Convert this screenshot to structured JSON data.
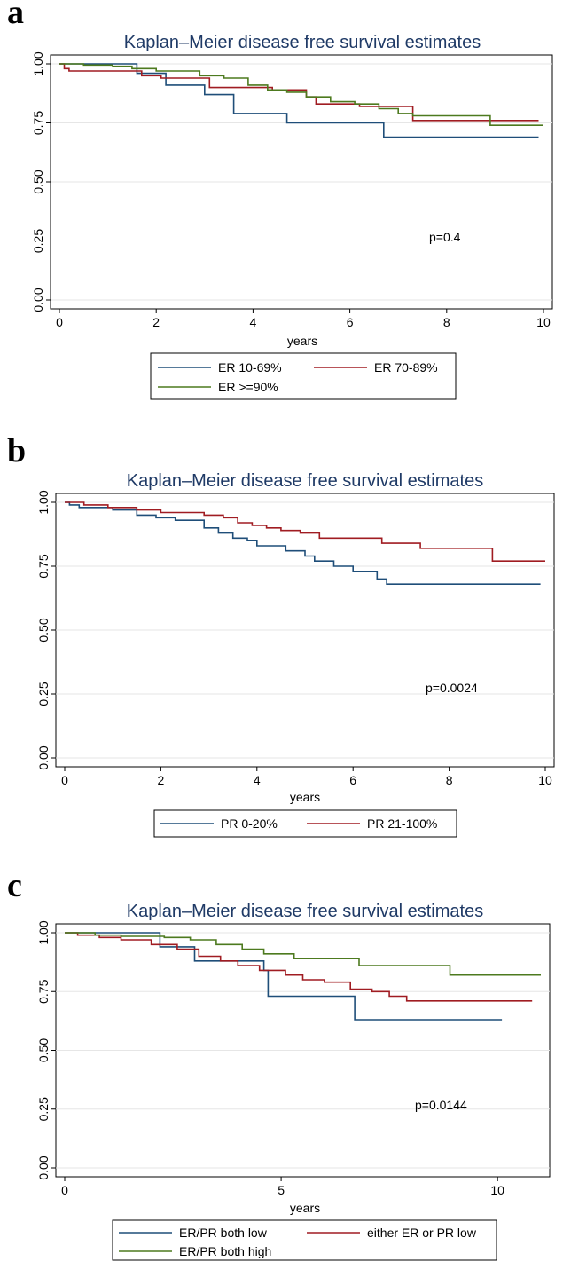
{
  "chart_data": [
    {
      "panel": "a",
      "type": "line",
      "title": "Kaplan–Meier disease free survival estimates",
      "xlabel": "years",
      "ylabel": "",
      "xlim": [
        0,
        10
      ],
      "ylim": [
        0,
        1
      ],
      "xticks": [
        0,
        2,
        4,
        6,
        8,
        10
      ],
      "yticks": [
        0,
        0.25,
        0.5,
        0.75,
        1
      ],
      "ytick_labels": [
        "0.00",
        "0.25",
        "0.50",
        "0.75",
        "1.00"
      ],
      "grid": true,
      "annotation": {
        "text": "p=0.4",
        "x": 7.5,
        "y": 0.27
      },
      "legend": {
        "placement": "bottom",
        "columns": 2
      },
      "series": [
        {
          "name": "ER 10-69%",
          "color": "#1f4e79",
          "x": [
            0,
            1.6,
            1.6,
            2.2,
            2.2,
            3.0,
            3.0,
            3.6,
            3.6,
            4.7,
            4.7,
            6.7,
            6.7,
            9.9
          ],
          "y": [
            1.0,
            1.0,
            0.96,
            0.96,
            0.91,
            0.91,
            0.87,
            0.87,
            0.79,
            0.79,
            0.75,
            0.75,
            0.69,
            0.69
          ]
        },
        {
          "name": "ER 70-89%",
          "color": "#a01c22",
          "x": [
            0,
            0.1,
            0.1,
            0.2,
            0.2,
            1.7,
            1.7,
            2.1,
            2.1,
            3.1,
            3.1,
            4.4,
            4.4,
            5.1,
            5.1,
            5.3,
            5.3,
            6.2,
            6.2,
            7.3,
            7.3,
            9.9
          ],
          "y": [
            1.0,
            1.0,
            0.98,
            0.98,
            0.97,
            0.97,
            0.95,
            0.95,
            0.94,
            0.94,
            0.9,
            0.9,
            0.89,
            0.89,
            0.86,
            0.86,
            0.83,
            0.83,
            0.82,
            0.82,
            0.76,
            0.76
          ],
          "end_y": 0.76
        },
        {
          "name": "ER >=90%",
          "color": "#4d7a1f",
          "x": [
            0,
            0.5,
            0.5,
            1.1,
            1.1,
            1.5,
            1.5,
            2.0,
            2.0,
            2.9,
            2.9,
            3.4,
            3.4,
            3.9,
            3.9,
            4.3,
            4.3,
            4.7,
            4.7,
            5.1,
            5.1,
            5.6,
            5.6,
            6.1,
            6.1,
            6.6,
            6.6,
            7.0,
            7.0,
            7.3,
            7.3,
            8.9,
            8.9,
            10.0
          ],
          "y": [
            1.0,
            1.0,
            0.995,
            0.995,
            0.99,
            0.99,
            0.98,
            0.98,
            0.97,
            0.97,
            0.95,
            0.95,
            0.94,
            0.94,
            0.91,
            0.91,
            0.89,
            0.89,
            0.88,
            0.88,
            0.86,
            0.86,
            0.84,
            0.84,
            0.83,
            0.83,
            0.81,
            0.81,
            0.79,
            0.79,
            0.78,
            0.78,
            0.74,
            0.74
          ]
        }
      ]
    },
    {
      "panel": "b",
      "type": "line",
      "title": "Kaplan–Meier disease free survival estimates",
      "xlabel": "years",
      "ylabel": "",
      "xlim": [
        0,
        10
      ],
      "ylim": [
        0,
        1
      ],
      "xticks": [
        0,
        2,
        4,
        6,
        8,
        10
      ],
      "yticks": [
        0,
        0.25,
        0.5,
        0.75,
        1
      ],
      "ytick_labels": [
        "0.00",
        "0.25",
        "0.50",
        "0.75",
        "1.00"
      ],
      "grid": true,
      "annotation": {
        "text": "p=0.0024",
        "x": 7.5,
        "y": 0.27
      },
      "legend": {
        "placement": "bottom",
        "columns": 2
      },
      "series": [
        {
          "name": "PR 0-20%",
          "color": "#1f4e79",
          "x": [
            0,
            0.1,
            0.1,
            0.3,
            0.3,
            1.0,
            1.0,
            1.5,
            1.5,
            1.9,
            1.9,
            2.3,
            2.3,
            2.9,
            2.9,
            3.2,
            3.2,
            3.5,
            3.5,
            3.8,
            3.8,
            4.0,
            4.0,
            4.6,
            4.6,
            5.0,
            5.0,
            5.2,
            5.2,
            5.6,
            5.6,
            6.0,
            6.0,
            6.5,
            6.5,
            6.7,
            6.7,
            7.1,
            7.1,
            9.9
          ],
          "y": [
            1.0,
            1.0,
            0.99,
            0.99,
            0.98,
            0.98,
            0.97,
            0.97,
            0.95,
            0.95,
            0.94,
            0.94,
            0.93,
            0.93,
            0.9,
            0.9,
            0.88,
            0.88,
            0.86,
            0.86,
            0.85,
            0.85,
            0.83,
            0.83,
            0.81,
            0.81,
            0.79,
            0.79,
            0.77,
            0.77,
            0.75,
            0.75,
            0.73,
            0.73,
            0.7,
            0.7,
            0.68,
            0.68,
            0.68,
            0.68
          ]
        },
        {
          "name": "PR 21-100%",
          "color": "#a01c22",
          "x": [
            0,
            0.4,
            0.4,
            0.9,
            0.9,
            1.5,
            1.5,
            2.0,
            2.0,
            2.9,
            2.9,
            3.3,
            3.3,
            3.6,
            3.6,
            3.9,
            3.9,
            4.2,
            4.2,
            4.5,
            4.5,
            4.9,
            4.9,
            5.3,
            5.3,
            6.6,
            6.6,
            7.4,
            7.4,
            8.9,
            8.9,
            10.0
          ],
          "y": [
            1.0,
            1.0,
            0.99,
            0.99,
            0.98,
            0.98,
            0.97,
            0.97,
            0.96,
            0.96,
            0.95,
            0.95,
            0.94,
            0.94,
            0.92,
            0.92,
            0.91,
            0.91,
            0.9,
            0.9,
            0.89,
            0.89,
            0.88,
            0.88,
            0.86,
            0.86,
            0.84,
            0.84,
            0.82,
            0.82,
            0.77,
            0.77
          ]
        }
      ]
    },
    {
      "panel": "c",
      "type": "line",
      "title": "Kaplan–Meier disease free survival estimates",
      "xlabel": "years",
      "ylabel": "",
      "xlim": [
        0,
        11
      ],
      "ylim": [
        0,
        1
      ],
      "xticks": [
        0,
        5,
        10
      ],
      "yticks": [
        0,
        0.25,
        0.5,
        0.75,
        1
      ],
      "ytick_labels": [
        "0.00",
        "0.25",
        "0.50",
        "0.75",
        "1.00"
      ],
      "grid": true,
      "annotation": {
        "text": "p=0.0144",
        "x": 8.0,
        "y": 0.27
      },
      "legend": {
        "placement": "bottom",
        "columns": 2
      },
      "series": [
        {
          "name": "ER/PR both low",
          "color": "#1f4e79",
          "x": [
            0,
            2.2,
            2.2,
            3.0,
            3.0,
            4.6,
            4.6,
            4.7,
            4.7,
            6.7,
            6.7,
            10.1
          ],
          "y": [
            1.0,
            1.0,
            0.94,
            0.94,
            0.88,
            0.88,
            0.84,
            0.84,
            0.73,
            0.73,
            0.63,
            0.63
          ]
        },
        {
          "name": "either ER or PR low",
          "color": "#a01c22",
          "x": [
            0,
            0.3,
            0.3,
            0.8,
            0.8,
            1.3,
            1.3,
            2.0,
            2.0,
            2.6,
            2.6,
            3.1,
            3.1,
            3.6,
            3.6,
            4.0,
            4.0,
            4.5,
            4.5,
            5.1,
            5.1,
            5.5,
            5.5,
            6.0,
            6.0,
            6.6,
            6.6,
            7.1,
            7.1,
            7.5,
            7.5,
            7.9,
            7.9,
            10.8
          ],
          "y": [
            1.0,
            1.0,
            0.99,
            0.99,
            0.98,
            0.98,
            0.97,
            0.97,
            0.95,
            0.95,
            0.93,
            0.93,
            0.9,
            0.9,
            0.88,
            0.88,
            0.86,
            0.86,
            0.84,
            0.84,
            0.82,
            0.82,
            0.8,
            0.8,
            0.79,
            0.79,
            0.76,
            0.76,
            0.75,
            0.75,
            0.73,
            0.73,
            0.71,
            0.71
          ]
        },
        {
          "name": "ER/PR both high",
          "color": "#4d7a1f",
          "x": [
            0,
            0.7,
            0.7,
            1.3,
            1.3,
            2.3,
            2.3,
            2.9,
            2.9,
            3.5,
            3.5,
            4.1,
            4.1,
            4.6,
            4.6,
            5.3,
            5.3,
            6.8,
            6.8,
            8.9,
            8.9,
            11.0
          ],
          "y": [
            1.0,
            1.0,
            0.99,
            0.99,
            0.985,
            0.985,
            0.98,
            0.98,
            0.97,
            0.97,
            0.95,
            0.95,
            0.93,
            0.93,
            0.91,
            0.91,
            0.89,
            0.89,
            0.86,
            0.86,
            0.82,
            0.82
          ]
        }
      ]
    }
  ]
}
